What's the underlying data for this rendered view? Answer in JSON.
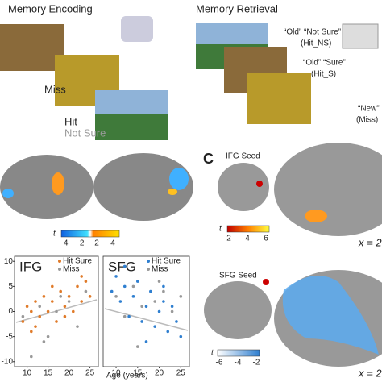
{
  "encoding": {
    "title": "Memory Encoding",
    "miss": "Miss",
    "hit": "Hit",
    "not_sure": "Not Sure"
  },
  "retrieval": {
    "title": "Memory Retrieval",
    "old_not_sure": "“Old” “Not Sure”",
    "hit_ns": "(Hit_NS)",
    "old_sure": "“Old” “Sure”",
    "hit_s": "(Hit_S)",
    "new": "“New”",
    "miss": "(Miss)"
  },
  "colorbar_b": {
    "label": "t",
    "ticks": [
      -4,
      -2,
      2,
      4
    ]
  },
  "panel_c": {
    "letter": "C",
    "ifg_seed": "IFG Seed",
    "ifg_colorbar": {
      "label": "t",
      "ticks": [
        2,
        4,
        6
      ]
    },
    "ifg_slice": "x = 2",
    "sfg_seed": "SFG Seed",
    "sfg_colorbar": {
      "label": "t",
      "ticks": [
        -6,
        -4,
        -2
      ]
    },
    "sfg_slice": "x = 2"
  },
  "x_axis_label": "Age (years)",
  "chart_data": [
    {
      "type": "scatter",
      "title": "IFG",
      "xlim": [
        7,
        27
      ],
      "ylim": [
        -11,
        11
      ],
      "xticks": [
        10,
        15,
        20,
        25
      ],
      "yticks": [
        -10,
        -5,
        0,
        5,
        10
      ],
      "series": [
        {
          "name": "Hit Sure",
          "color": "#e07b2a",
          "x": [
            9,
            10,
            11,
            12,
            12,
            13,
            14,
            15,
            16,
            17,
            18,
            19,
            20,
            21,
            22,
            23,
            24,
            25,
            11,
            16,
            19,
            23
          ],
          "values": [
            -2,
            1,
            0,
            -3,
            2,
            -1,
            3,
            0,
            2,
            -2,
            4,
            1,
            3,
            0,
            5,
            2,
            6,
            3,
            -4,
            5,
            -1,
            7
          ]
        },
        {
          "name": "Miss",
          "color": "#999999",
          "x": [
            9,
            11,
            13,
            15,
            17,
            20,
            22,
            24,
            14,
            18
          ],
          "values": [
            -1,
            -9,
            1,
            -5,
            0,
            2,
            -3,
            4,
            -6,
            3
          ]
        }
      ]
    },
    {
      "type": "scatter",
      "title": "SFG",
      "xlim": [
        7,
        27
      ],
      "ylim": [
        -11,
        11
      ],
      "xticks": [
        10,
        15,
        20,
        25
      ],
      "series": [
        {
          "name": "Hit Sure",
          "color": "#2f7fd0",
          "x": [
            9,
            10,
            11,
            12,
            13,
            14,
            15,
            16,
            17,
            18,
            19,
            20,
            21,
            22,
            23,
            24,
            25,
            12,
            17,
            21
          ],
          "values": [
            4,
            7,
            2,
            5,
            -1,
            3,
            6,
            -2,
            1,
            4,
            -3,
            0,
            2,
            -4,
            1,
            -2,
            -5,
            9,
            -6,
            5
          ]
        },
        {
          "name": "Miss",
          "color": "#999999",
          "x": [
            10,
            12,
            14,
            16,
            19,
            21,
            23,
            25,
            15,
            20
          ],
          "values": [
            3,
            -1,
            5,
            1,
            2,
            4,
            0,
            3,
            -7,
            6
          ]
        }
      ]
    }
  ]
}
